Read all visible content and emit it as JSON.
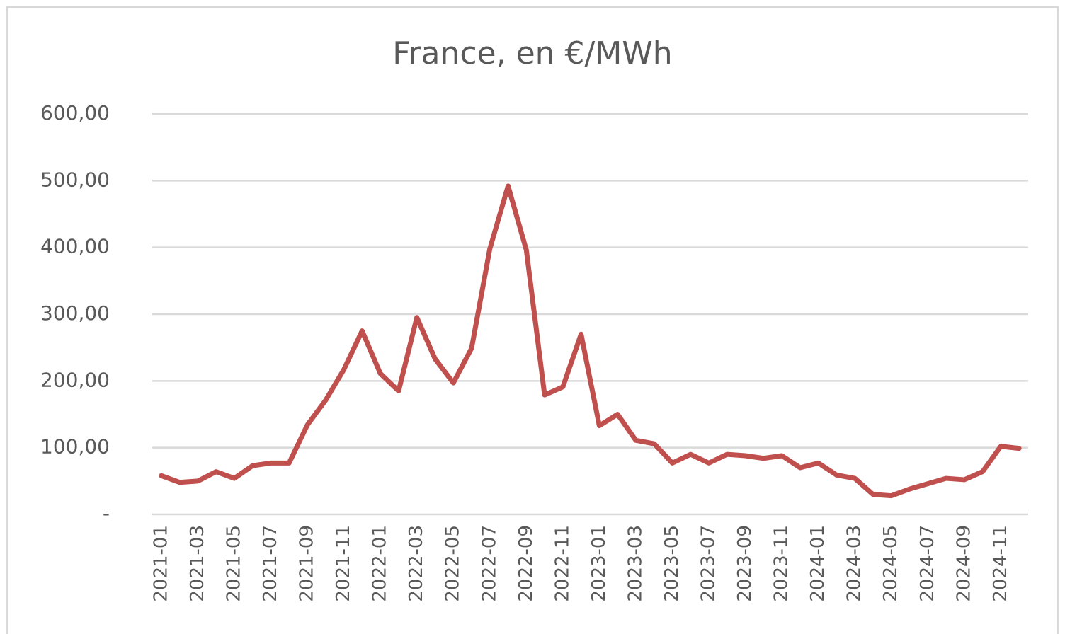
{
  "chart_data": {
    "type": "line",
    "title": "France, en €/MWh",
    "categories": [
      "2021-01",
      null,
      "2021-03",
      null,
      "2021-05",
      null,
      "2021-07",
      null,
      "2021-09",
      null,
      "2021-11",
      null,
      "2022-01",
      null,
      "2022-03",
      null,
      "2022-05",
      null,
      "2022-07",
      null,
      "2022-09",
      null,
      "2022-11",
      null,
      "2023-01",
      null,
      "2023-03",
      null,
      "2023-05",
      null,
      "2023-07",
      null,
      "2023-09",
      null,
      "2023-11",
      null,
      "2024-01",
      null,
      "2024-03",
      null,
      "2024-05",
      null,
      "2024-07",
      null,
      "2024-09",
      null,
      "2024-11",
      null
    ],
    "series": [
      {
        "color": "#c0504d",
        "values": [
          58,
          48,
          50,
          64,
          54,
          73,
          77,
          77,
          134,
          171,
          217,
          275,
          211,
          185,
          295,
          233,
          197,
          249,
          398,
          492,
          396,
          179,
          191,
          270,
          133,
          150,
          111,
          106,
          77,
          90,
          77,
          90,
          88,
          84,
          88,
          70,
          77,
          59,
          54,
          30,
          28,
          38,
          46,
          54,
          52,
          64,
          102,
          99
        ]
      }
    ],
    "ylim": [
      0,
      600
    ],
    "yticks": [
      {
        "value": 0,
        "label": "-"
      },
      {
        "value": 100,
        "label": "100,00"
      },
      {
        "value": 200,
        "label": "200,00"
      },
      {
        "value": 300,
        "label": "300,00"
      },
      {
        "value": 400,
        "label": "400,00"
      },
      {
        "value": 500,
        "label": "500,00"
      },
      {
        "value": 600,
        "label": "600,00"
      }
    ],
    "grid": true
  }
}
